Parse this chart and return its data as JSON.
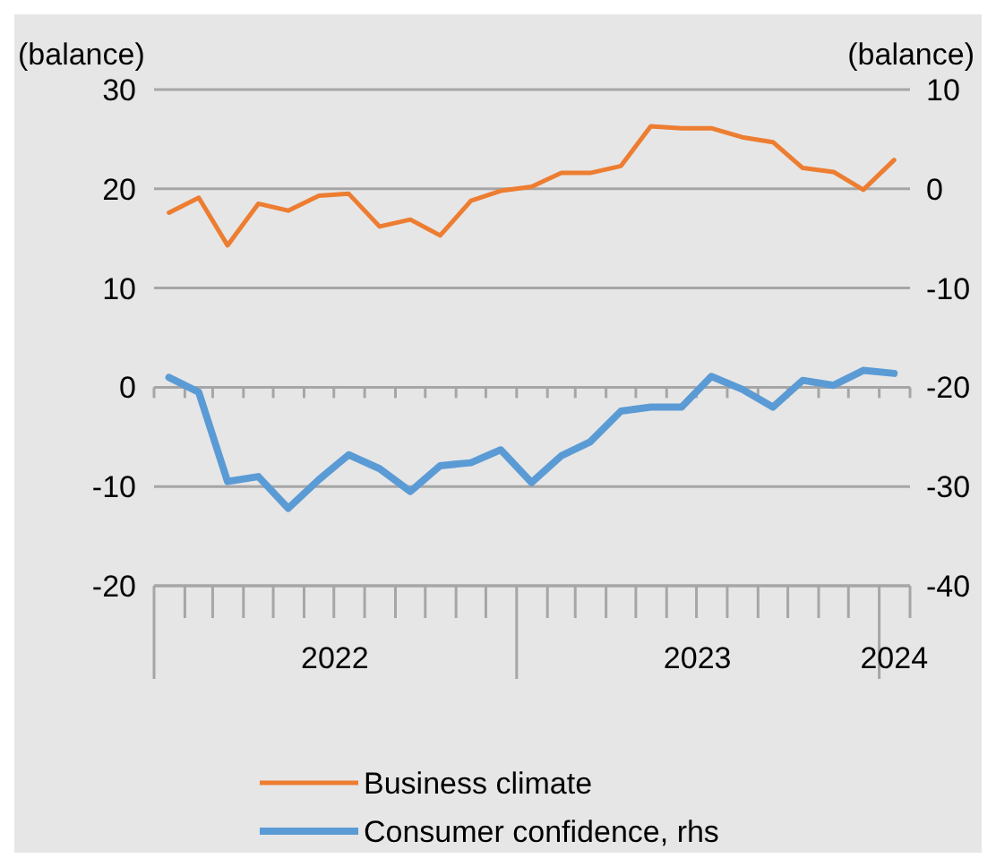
{
  "chart_data": {
    "type": "line",
    "ylabel": "(balance)",
    "y2label": "(balance)",
    "x": [
      "2022-01-16",
      "2022-02-15",
      "2022-03-16",
      "2022-04-16",
      "2022-05-16",
      "2022-06-16",
      "2022-07-16",
      "2022-08-16",
      "2022-09-16",
      "2022-10-16",
      "2022-11-16",
      "2022-12-16",
      "2023-01-16",
      "2023-02-15",
      "2023-03-16",
      "2023-04-16",
      "2023-05-16",
      "2023-06-16",
      "2023-07-16",
      "2023-08-16",
      "2023-09-16",
      "2023-10-16",
      "2023-11-16",
      "2023-12-16",
      "2024-01-16"
    ],
    "xlim": [
      "2022-01-01",
      "2024-02-01"
    ],
    "xticks": [
      {
        "value": "2022-01-01",
        "label": null
      },
      {
        "value": "2022-02-01",
        "label": null
      },
      {
        "value": "2022-03-01",
        "label": null
      },
      {
        "value": "2022-04-01",
        "label": null
      },
      {
        "value": "2022-05-01",
        "label": null
      },
      {
        "value": "2022-06-01",
        "label": null
      },
      {
        "value": "2022-07-01",
        "label": null
      },
      {
        "value": "2022-08-01",
        "label": null
      },
      {
        "value": "2022-09-01",
        "label": null
      },
      {
        "value": "2022-10-01",
        "label": null
      },
      {
        "value": "2022-11-01",
        "label": null
      },
      {
        "value": "2022-12-01",
        "label": null
      },
      {
        "value": "2023-01-01",
        "label": null
      },
      {
        "value": "2023-02-01",
        "label": null
      },
      {
        "value": "2023-03-01",
        "label": null
      },
      {
        "value": "2023-04-01",
        "label": null
      },
      {
        "value": "2023-05-01",
        "label": null
      },
      {
        "value": "2023-06-01",
        "label": null
      },
      {
        "value": "2023-07-01",
        "label": null
      },
      {
        "value": "2023-08-01",
        "label": null
      },
      {
        "value": "2023-09-01",
        "label": null
      },
      {
        "value": "2023-10-01",
        "label": null
      },
      {
        "value": "2023-11-01",
        "label": null
      },
      {
        "value": "2023-12-01",
        "label": null
      },
      {
        "value": "2024-01-01",
        "label": null
      },
      {
        "value": "2024-02-01",
        "label": null
      },
      {
        "value": "2022-07-02",
        "label": "2022"
      },
      {
        "value": "2023-07-02",
        "label": "2023"
      },
      {
        "value": "2024-01-16",
        "label": "2024"
      }
    ],
    "ylim": [
      -20,
      30
    ],
    "yticks": [
      -20,
      -10,
      0,
      10,
      20,
      30
    ],
    "y2lim": [
      -40,
      10
    ],
    "y2ticks": [
      -40,
      -30,
      -20,
      -10,
      0,
      10
    ],
    "grid": "y",
    "legend": "bottom",
    "marker": "none",
    "line_style": "solid",
    "series": [
      {
        "name": "Business climate",
        "color": "#ed7d31",
        "values": [
          17.6,
          19.1,
          14.3,
          18.5,
          17.8,
          19.3,
          19.5,
          16.2,
          16.9,
          15.3,
          18.8,
          19.8,
          20.2,
          21.6,
          21.6,
          22.3,
          26.3,
          26.1,
          26.1,
          25.2,
          24.7,
          22.1,
          21.7,
          19.9,
          22.9
        ]
      },
      {
        "name": "Consumer confidence, rhs",
        "color": "#5b9bd5",
        "axis": "y2",
        "values": [
          -19.0,
          -20.5,
          -29.5,
          -29.0,
          -32.2,
          -29.3,
          -26.8,
          -28.2,
          -30.5,
          -27.9,
          -27.6,
          -26.3,
          -29.6,
          -26.9,
          -25.5,
          -22.4,
          -22.0,
          -22.0,
          -18.9,
          -20.2,
          -22.0,
          -19.3,
          -19.8,
          -18.3,
          -18.6
        ]
      }
    ]
  }
}
